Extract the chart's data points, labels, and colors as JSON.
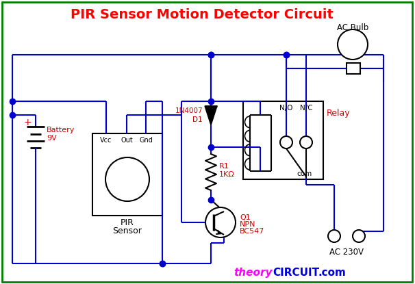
{
  "title": "PIR Sensor Motion Detector Circuit",
  "title_color": "#ff0000",
  "title_fontsize": 14,
  "bg_color": "#ffffff",
  "border_color": "#008000",
  "wire_color": "#0000cc",
  "component_color": "#000000",
  "label_color": "#cc0000",
  "watermark_magenta": "#ff00ff",
  "watermark_blue": "#0000dd",
  "ac230v_label": "AC 230V",
  "ac_bulb_label": "AC Bulb",
  "battery_label_1": "Battery",
  "battery_label_2": "9V",
  "relay_label": "Relay",
  "diode_label_1": "1N4007",
  "diode_label_2": "D1",
  "resistor_label_1": "R1",
  "resistor_label_2": "1KΩ",
  "transistor_label_1": "Q1",
  "transistor_label_2": "NPN",
  "transistor_label_3": "BC547",
  "pir_label_1": "PIR",
  "pir_label_2": "Sensor",
  "vcc_label": "Vcc",
  "out_label": "Out",
  "gnd_label": "Gnd",
  "no_label": "N/O",
  "nc_label": "N/C",
  "com_label": "com"
}
